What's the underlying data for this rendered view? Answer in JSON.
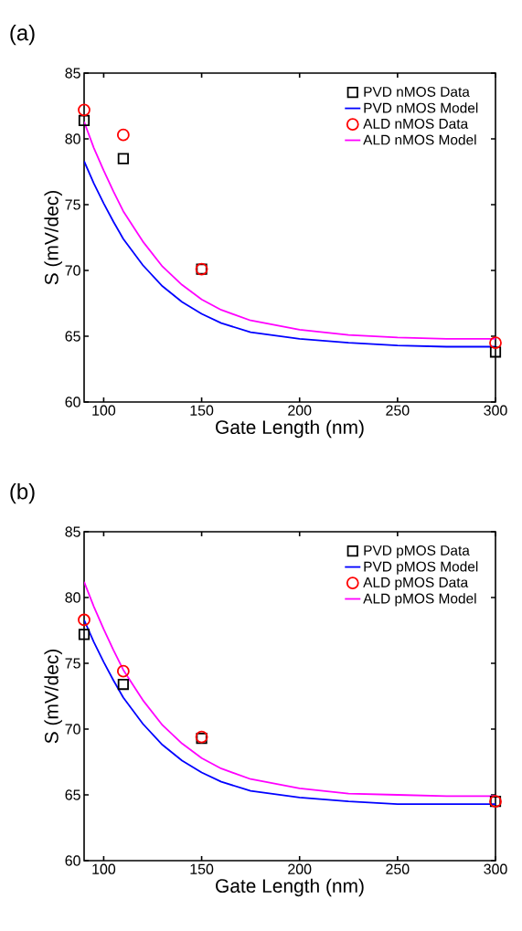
{
  "chart_data": [
    {
      "type": "scatter",
      "title": "(a)",
      "xlabel": "Gate Length (nm)",
      "ylabel": "S (mV/dec)",
      "xlim": [
        90,
        300
      ],
      "ylim": [
        60,
        85
      ],
      "xticks": [
        100,
        150,
        200,
        250,
        300
      ],
      "yticks": [
        60,
        65,
        70,
        75,
        80,
        85
      ],
      "legend": "top right",
      "series": [
        {
          "name": "PVD nMOS Data",
          "type": "scatter",
          "marker": "square",
          "color": "#000000",
          "x": [
            90,
            110,
            150,
            300
          ],
          "values": [
            81.4,
            78.5,
            70.1,
            63.8
          ]
        },
        {
          "name": "PVD nMOS Model",
          "type": "line",
          "marker": "none",
          "color": "#0000ff",
          "x": [
            90,
            95,
            100,
            105,
            110,
            120,
            130,
            140,
            150,
            160,
            175,
            200,
            225,
            250,
            275,
            300
          ],
          "values": [
            78.3,
            76.6,
            75.1,
            73.7,
            72.4,
            70.4,
            68.8,
            67.6,
            66.7,
            66.0,
            65.3,
            64.8,
            64.5,
            64.3,
            64.2,
            64.2
          ]
        },
        {
          "name": "ALD nMOS Data",
          "type": "scatter",
          "marker": "circle",
          "color": "#ff0000",
          "x": [
            90,
            110,
            150,
            300
          ],
          "values": [
            82.2,
            80.3,
            70.1,
            64.5
          ]
        },
        {
          "name": "ALD nMOS Model",
          "type": "line",
          "marker": "none",
          "color": "#ff00ff",
          "x": [
            90,
            95,
            100,
            105,
            110,
            120,
            130,
            140,
            150,
            160,
            175,
            200,
            225,
            250,
            275,
            300
          ],
          "values": [
            81.3,
            79.3,
            77.6,
            76.0,
            74.5,
            72.2,
            70.3,
            68.9,
            67.8,
            67.0,
            66.2,
            65.5,
            65.1,
            64.9,
            64.8,
            64.8
          ]
        }
      ]
    },
    {
      "type": "scatter",
      "title": "(b)",
      "xlabel": "Gate Length (nm)",
      "ylabel": "S (mV/dec)",
      "xlim": [
        90,
        300
      ],
      "ylim": [
        60,
        85
      ],
      "xticks": [
        100,
        150,
        200,
        250,
        300
      ],
      "yticks": [
        60,
        65,
        70,
        75,
        80,
        85
      ],
      "legend": "top right",
      "series": [
        {
          "name": "PVD pMOS Data",
          "type": "scatter",
          "marker": "square",
          "color": "#000000",
          "x": [
            90,
            110,
            150,
            300
          ],
          "values": [
            77.2,
            73.4,
            69.3,
            64.5
          ]
        },
        {
          "name": "PVD pMOS Model",
          "type": "line",
          "marker": "none",
          "color": "#0000ff",
          "x": [
            90,
            95,
            100,
            105,
            110,
            120,
            130,
            140,
            150,
            160,
            175,
            200,
            225,
            250,
            275,
            300
          ],
          "values": [
            78.3,
            76.6,
            75.1,
            73.7,
            72.4,
            70.4,
            68.8,
            67.6,
            66.7,
            66.0,
            65.3,
            64.8,
            64.5,
            64.3,
            64.3,
            64.3
          ]
        },
        {
          "name": "ALD pMOS Data",
          "type": "scatter",
          "marker": "circle",
          "color": "#ff0000",
          "x": [
            90,
            110,
            150,
            300
          ],
          "values": [
            78.3,
            74.4,
            69.4,
            64.5
          ]
        },
        {
          "name": "ALD pMOS Model",
          "type": "line",
          "marker": "none",
          "color": "#ff00ff",
          "x": [
            90,
            95,
            100,
            105,
            110,
            120,
            130,
            140,
            150,
            160,
            175,
            200,
            225,
            250,
            275,
            300
          ],
          "values": [
            81.2,
            79.3,
            77.6,
            76.0,
            74.5,
            72.2,
            70.3,
            68.9,
            67.8,
            67.0,
            66.2,
            65.5,
            65.1,
            65.0,
            64.9,
            64.9
          ]
        }
      ]
    }
  ]
}
